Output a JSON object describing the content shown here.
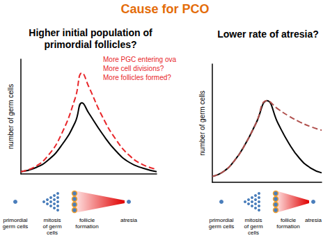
{
  "title": "Cause for PCO",
  "chart_data": [
    {
      "type": "line",
      "title": "Higher initial population of\nprimordial follicles?",
      "y_label": "number of germ cells",
      "annotations": [
        "More PGC entering ova",
        "More cell divisions?",
        "More follicles formed?"
      ],
      "stages": [
        "primordial\ngerm cells",
        "mitosis\nof germ\ncells",
        "follicle\nformation",
        "atresia"
      ],
      "x": [
        0,
        1,
        2,
        3,
        4,
        4.5,
        5,
        6,
        7,
        8,
        9,
        10
      ],
      "xlim": [
        0,
        10
      ],
      "ylim": [
        0,
        100
      ],
      "grid": false,
      "tick_labels": false,
      "series": [
        {
          "color": "#000000",
          "line_style": "solid",
          "values": [
            2,
            5,
            12,
            25,
            45,
            62,
            53,
            35,
            20,
            10,
            5,
            2
          ]
        },
        {
          "color": "#e8262a",
          "line_style": "dashed",
          "values": [
            2,
            6,
            16,
            35,
            66,
            88,
            76,
            50,
            30,
            16,
            8,
            4
          ]
        }
      ]
    },
    {
      "type": "line",
      "title": "Lower rate of atresia?",
      "y_label": "number of germ cells",
      "stages": [
        "primordial\ngerm cells",
        "mitosis\nof germ\ncells",
        "follicle\nformation",
        "atresia"
      ],
      "x": [
        0,
        1,
        2,
        3,
        4,
        5,
        6,
        7,
        8,
        9,
        10
      ],
      "xlim": [
        0,
        10
      ],
      "ylim": [
        0,
        100
      ],
      "grid": false,
      "tick_labels": false,
      "series": [
        {
          "color": "#000000",
          "line_style": "solid",
          "values": [
            5,
            9,
            18,
            32,
            50,
            69,
            50,
            33,
            20,
            12,
            8
          ]
        },
        {
          "color": "#b0504d",
          "line_style": "dashed",
          "values": [
            5,
            9,
            18,
            32,
            50,
            69,
            62,
            56,
            51,
            47,
            44
          ]
        }
      ]
    }
  ]
}
